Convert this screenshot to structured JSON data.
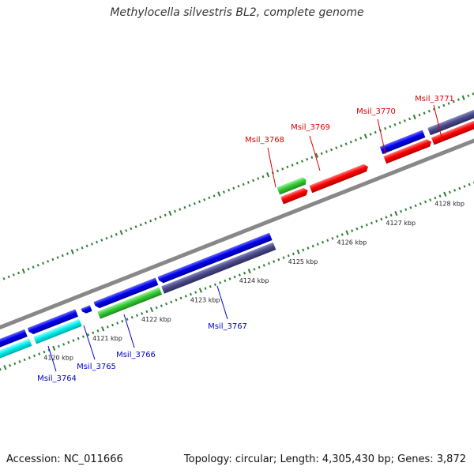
{
  "title": "Methylocella silvestris BL2, complete genome",
  "footer": {
    "accession": "Accession: NC_011666",
    "summary": "Topology: circular; Length: 4,305,430 bp; Genes: 3,872"
  },
  "ticks": [
    {
      "label": "4120 kbp",
      "kbp": 4120
    },
    {
      "label": "4121 kbp",
      "kbp": 4121
    },
    {
      "label": "4122 kbp",
      "kbp": 4122
    },
    {
      "label": "4123 kbp",
      "kbp": 4123
    },
    {
      "label": "4124 kbp",
      "kbp": 4124
    },
    {
      "label": "4125 kbp",
      "kbp": 4125
    },
    {
      "label": "4126 kbp",
      "kbp": 4126
    },
    {
      "label": "4127 kbp",
      "kbp": 4127
    },
    {
      "label": "4128 kbp",
      "kbp": 4128
    }
  ],
  "gene_labels": [
    {
      "name": "Msil_3764",
      "strand": "minus",
      "color": "#0000cc"
    },
    {
      "name": "Msil_3765",
      "strand": "minus",
      "color": "#0000cc"
    },
    {
      "name": "Msil_3766",
      "strand": "minus",
      "color": "#0000cc"
    },
    {
      "name": "Msil_3767",
      "strand": "minus",
      "color": "#0000cc"
    },
    {
      "name": "Msil_3768",
      "strand": "plus",
      "color": "#dd0000"
    },
    {
      "name": "Msil_3769",
      "strand": "plus",
      "color": "#dd0000"
    },
    {
      "name": "Msil_3770",
      "strand": "plus",
      "color": "#dd0000"
    },
    {
      "name": "Msil_3771",
      "strand": "plus",
      "color": "#dd0000"
    }
  ],
  "colors": {
    "backbone": "#888888",
    "tick": "#2e7d32",
    "cds_blue": "#0000ee",
    "cds_red": "#ff0000",
    "cds_green": "#33cc33",
    "cds_cyan": "#00eeee",
    "cds_slate": "#4a4a8c"
  }
}
